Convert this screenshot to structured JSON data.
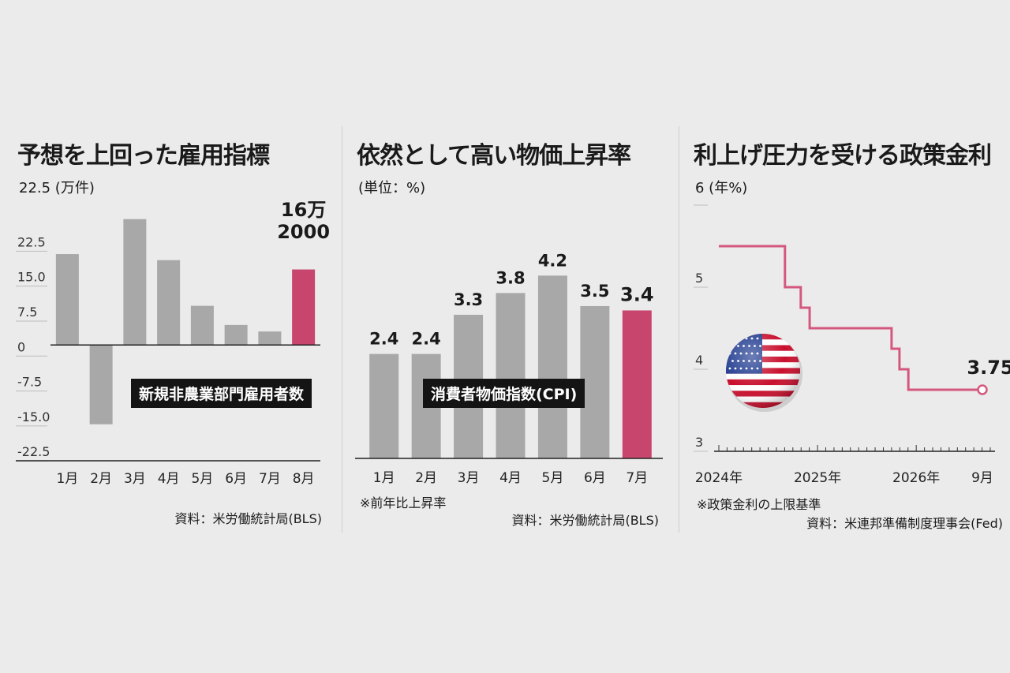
{
  "colors": {
    "bar": "#a8a8a8",
    "highlight": "#c8466e",
    "line": "#d4587e",
    "caption_bg": "#141414"
  },
  "panels": {
    "jobs": {
      "title": "予想を上回った雇用指標",
      "unit": "22.5 (万件)",
      "caption": "新規非農業部門雇用者数",
      "highlight_label_line1": "16万",
      "highlight_label_line2": "2000",
      "source": "資料：米労働統計局(BLS)"
    },
    "cpi": {
      "title": "依然として高い物価上昇率",
      "unit": "(単位：%)",
      "caption": "消費者物価指数(CPI)",
      "note": "※前年比上昇率",
      "source": "資料：米労働統計局(BLS)"
    },
    "rate": {
      "title": "利上げ圧力を受ける政策金利",
      "unit": "6 (年%)",
      "end_label": "3.75",
      "flag": "us-flag-icon",
      "note": "※政策金利の上限基準",
      "source": "資料：米連邦準備制度理事会(Fed)"
    }
  },
  "chart_data": [
    {
      "type": "bar",
      "title": "予想を上回った雇用指標",
      "ylabel": "万件",
      "categories": [
        "1月",
        "2月",
        "3月",
        "4月",
        "5月",
        "6月",
        "7月",
        "8月"
      ],
      "values": [
        19.5,
        -17,
        27,
        18.2,
        8.4,
        4.3,
        2.9,
        16.2
      ],
      "highlight_index": 7,
      "ylim": [
        -25,
        30
      ],
      "yticks": [
        22.5,
        15.0,
        7.5,
        0,
        -7.5,
        -15.0,
        -22.5
      ],
      "ytick_labels": [
        "22.5",
        "15.0",
        "7.5",
        "0",
        "-7.5",
        "-15.0",
        "-22.5"
      ]
    },
    {
      "type": "bar",
      "title": "依然として高い物価上昇率",
      "ylabel": "%",
      "categories": [
        "1月",
        "2月",
        "3月",
        "4月",
        "5月",
        "6月",
        "7月"
      ],
      "values": [
        2.4,
        2.4,
        3.3,
        3.8,
        4.2,
        3.5,
        3.4
      ],
      "data_labels": [
        "2.4",
        "2.4",
        "3.3",
        "3.8",
        "4.2",
        "3.5",
        "3.4"
      ],
      "highlight_index": 6,
      "ylim": [
        0,
        4.75
      ]
    },
    {
      "type": "line",
      "title": "利上げ圧力を受ける政策金利",
      "ylabel": "年%",
      "x_tick_labels": [
        "2024年",
        "2025年",
        "2026年",
        "9月"
      ],
      "x_tick_values": [
        2024.0,
        2025.0,
        2026.0,
        2026.67
      ],
      "xlim": [
        2024.0,
        2026.75
      ],
      "ylim": [
        3,
        6
      ],
      "yticks": [
        6,
        5,
        4,
        3
      ],
      "ytick_labels": [
        "",
        "5",
        "4",
        "3"
      ],
      "step": true,
      "x": [
        2024.0,
        2024.67,
        2024.83,
        2024.92,
        2025.75,
        2025.83,
        2025.92,
        2026.67
      ],
      "y": [
        5.5,
        5.0,
        4.75,
        4.5,
        4.25,
        4.0,
        3.75,
        3.75
      ]
    }
  ]
}
